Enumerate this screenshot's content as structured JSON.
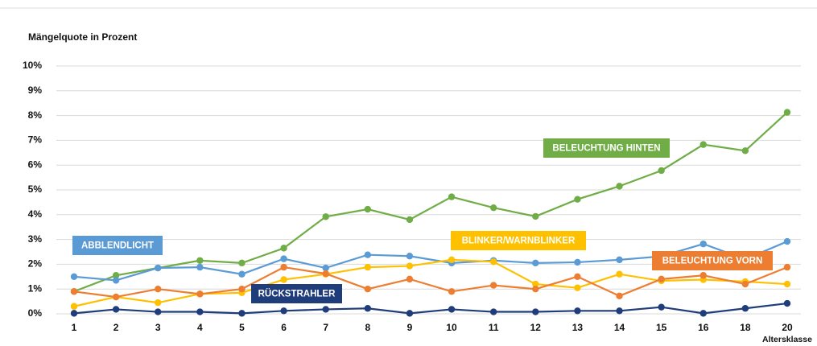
{
  "chart_data": {
    "type": "line",
    "title": "Mängelquote in Prozent",
    "x_label": "Altersklasse",
    "categories": [
      "1",
      "2",
      "3",
      "4",
      "5",
      "6",
      "7",
      "8",
      "9",
      "10",
      "11",
      "12",
      "13",
      "14",
      "15",
      "16",
      "18",
      "20"
    ],
    "ylim": [
      0,
      10
    ],
    "yticks": [
      {
        "value": 0,
        "label": "0%"
      },
      {
        "value": 1,
        "label": "1%"
      },
      {
        "value": 2,
        "label": "2%"
      },
      {
        "value": 3,
        "label": "3%"
      },
      {
        "value": 4,
        "label": "4%"
      },
      {
        "value": 5,
        "label": "5%"
      },
      {
        "value": 6,
        "label": "6%"
      },
      {
        "value": 7,
        "label": "7%"
      },
      {
        "value": 8,
        "label": "8%"
      },
      {
        "value": 9,
        "label": "9%"
      },
      {
        "value": 10,
        "label": "10%"
      }
    ],
    "grid": true,
    "series": [
      {
        "name": "BELEUCHTUNG HINTEN",
        "color": "#70ad47",
        "values": [
          0.9,
          1.55,
          1.85,
          2.15,
          2.05,
          2.65,
          3.92,
          4.22,
          3.8,
          4.72,
          4.28,
          3.93,
          4.62,
          5.15,
          5.78,
          6.83,
          6.58,
          8.13
        ]
      },
      {
        "name": "ABBLENDLICHT",
        "color": "#5b9bd5",
        "values": [
          1.5,
          1.35,
          1.85,
          1.88,
          1.6,
          2.22,
          1.85,
          2.38,
          2.33,
          2.05,
          2.15,
          2.05,
          2.08,
          2.18,
          2.32,
          2.82,
          2.2,
          2.92
        ]
      },
      {
        "name": "BLINKER/WARNBLINKER",
        "color": "#ffc000",
        "values": [
          0.3,
          0.68,
          0.45,
          0.8,
          0.85,
          1.38,
          1.6,
          1.88,
          1.93,
          2.18,
          2.1,
          1.2,
          1.05,
          1.6,
          1.33,
          1.38,
          1.3,
          1.2
        ]
      },
      {
        "name": "BELEUCHTUNG VORN",
        "color": "#ed7d31",
        "values": [
          0.9,
          0.68,
          1.0,
          0.8,
          1.0,
          1.88,
          1.62,
          1.0,
          1.4,
          0.9,
          1.15,
          1.0,
          1.5,
          0.72,
          1.4,
          1.55,
          1.2,
          1.88
        ]
      },
      {
        "name": "RÜCKSTRAHLER",
        "color": "#1f3d7a",
        "values": [
          0.02,
          0.18,
          0.08,
          0.08,
          0.02,
          0.12,
          0.18,
          0.22,
          0.02,
          0.18,
          0.08,
          0.08,
          0.12,
          0.12,
          0.27,
          0.02,
          0.22,
          0.42
        ]
      }
    ]
  }
}
